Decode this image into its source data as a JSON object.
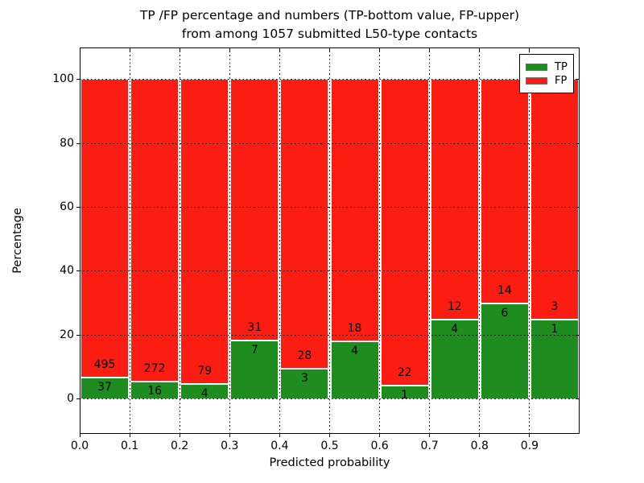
{
  "title": {
    "line1": "TP /FP percentage and numbers (TP-bottom value, FP-upper)",
    "line2": "from among 1057 submitted L50-type contacts"
  },
  "colors": {
    "tp_green": "#1e8c1e",
    "fp_red": "#fb1c12",
    "segment_separator": "#ffffff",
    "grid": "#000000",
    "text": "#000000"
  },
  "chart_data": {
    "type": "bar",
    "stacked": true,
    "normalized": "each bar scaled to 100%, labels show raw counts",
    "title": "TP /FP percentage and numbers (TP-bottom value, FP-upper) from among 1057 submitted L50-type contacts",
    "xlabel": "Predicted probability",
    "ylabel": "Percentage",
    "total_contacts": 1057,
    "categories": [
      "0.0-0.1",
      "0.1-0.2",
      "0.2-0.3",
      "0.3-0.4",
      "0.4-0.5",
      "0.5-0.6",
      "0.6-0.7",
      "0.7-0.8",
      "0.8-0.9",
      "0.9-1.0"
    ],
    "bin_width": 0.1,
    "series": [
      {
        "name": "TP",
        "color": "#1e8c1e",
        "counts": [
          37,
          16,
          4,
          7,
          3,
          4,
          1,
          4,
          6,
          1
        ]
      },
      {
        "name": "FP",
        "color": "#fb1c12",
        "counts": [
          495,
          272,
          79,
          31,
          28,
          18,
          22,
          12,
          14,
          3
        ]
      }
    ],
    "tp_percent_of_bar": [
      6.95,
      5.56,
      4.82,
      18.42,
      9.68,
      18.18,
      4.35,
      25.0,
      30.0,
      25.0
    ],
    "xlim": [
      0.0,
      1.0
    ],
    "ylim": [
      -11,
      110
    ],
    "xticks": [
      "0.0",
      "0.1",
      "0.2",
      "0.3",
      "0.4",
      "0.5",
      "0.6",
      "0.7",
      "0.8",
      "0.9"
    ],
    "yticks": [
      0,
      20,
      40,
      60,
      80,
      100
    ],
    "grid": true,
    "grid_style": "dotted",
    "legend_position": "upper right",
    "legend_entries": [
      "TP",
      "FP"
    ]
  }
}
